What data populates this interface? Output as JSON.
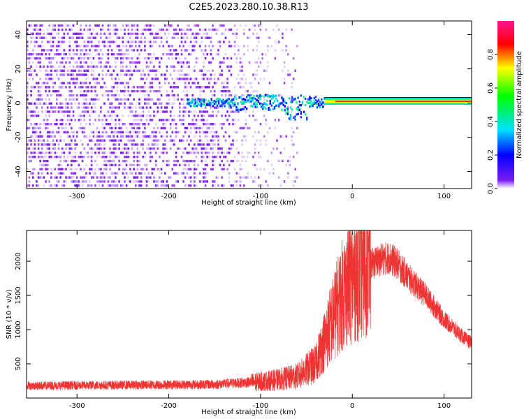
{
  "title": "C2E5.2023.280.10.38.R13",
  "colors": {
    "snr_line": "#ee3333",
    "spectrogram_noise": "#7a1cf0",
    "band_core": "#e03030"
  },
  "chart_data": [
    {
      "type": "heatmap",
      "xlabel": "Height of straight line (km)",
      "ylabel": "Frequency (Hz)",
      "xlim": [
        -355,
        130
      ],
      "ylim": [
        -50,
        48
      ],
      "xticks": [
        -300,
        -200,
        -100,
        0,
        100
      ],
      "yticks": [
        -40,
        -20,
        0,
        20,
        40
      ],
      "colorbar": {
        "label": "Normalized spectral amplitude",
        "range": [
          0,
          1
        ],
        "ticks": [
          0.0,
          0.2,
          0.4,
          0.6,
          0.8
        ],
        "colormap": "hsv-reversed"
      },
      "grid": false,
      "features": {
        "noise_region_x": [
          -355,
          -60
        ],
        "signal_onset_x": -180,
        "signal_center_hz": 1,
        "strong_band_x": [
          -30,
          130
        ]
      }
    },
    {
      "type": "line",
      "xlabel": "Height of straight line (km)",
      "ylabel": "SNR (10 * v/v)",
      "xlim": [
        -355,
        130
      ],
      "ylim": [
        0,
        2450
      ],
      "xticks": [
        -300,
        -200,
        -100,
        0,
        100
      ],
      "yticks": [
        500,
        1000,
        1500,
        2000
      ],
      "grid": false,
      "series": [
        {
          "x": [
            -355,
            -300,
            -250,
            -200,
            -150,
            -100,
            -80,
            -60,
            -40,
            -30,
            -20,
            -10,
            0,
            10,
            20,
            30,
            40,
            50,
            60,
            80,
            100,
            120,
            130
          ],
          "y": [
            180,
            185,
            190,
            195,
            200,
            240,
            270,
            320,
            500,
            850,
            1200,
            1550,
            1750,
            1850,
            1950,
            2020,
            2050,
            1950,
            1780,
            1500,
            1150,
            900,
            800
          ]
        }
      ]
    }
  ]
}
